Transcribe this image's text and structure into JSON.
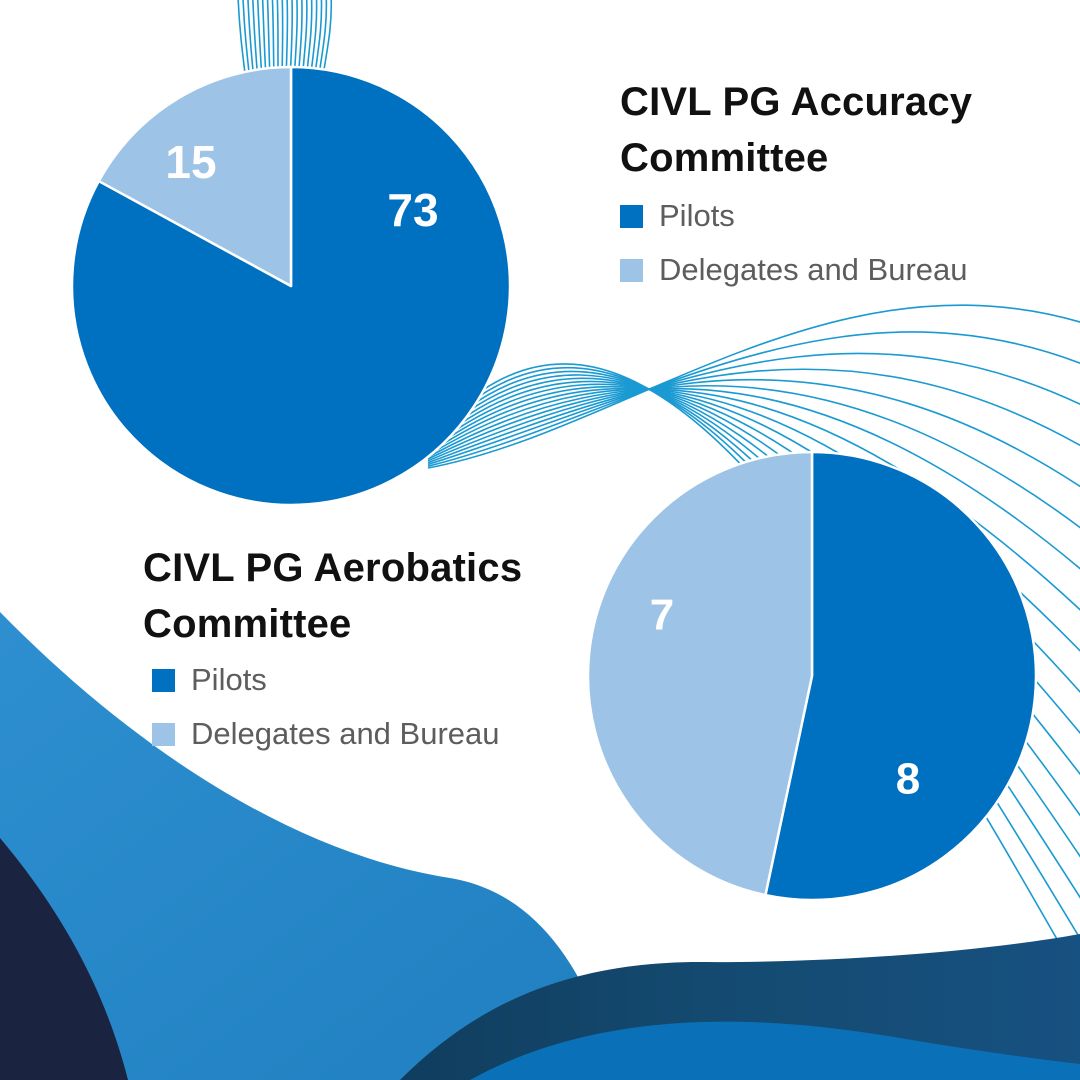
{
  "page": {
    "background": "#ffffff"
  },
  "palette": {
    "pie_dark_blue": "#0070c0",
    "pie_light_blue": "#9dc3e6",
    "thin_line_accent": "#1b9ad2",
    "wave_bright_blue": "#2487c8",
    "wave_shadow_dark": "#16304e",
    "wave_teal_navy": "#144a70",
    "wave_bottom_blue": "#0a70b7",
    "wave_navy_corner": "#1a2440",
    "title_color": "#111111",
    "legend_text_color": "#5d5d5d",
    "data_label_color": "#ffffff"
  },
  "chart_data": [
    {
      "type": "pie",
      "title": "CIVL PG Accuracy Committee",
      "labels": [
        "Pilots",
        "Delegates and Bureau"
      ],
      "values": [
        73,
        15
      ],
      "colors": [
        "#0070c0",
        "#9dc3e6"
      ],
      "data_labels": [
        "73",
        "15"
      ],
      "start_angle_deg": 0,
      "direction": "clockwise",
      "legend_position": "right-of-chart"
    },
    {
      "type": "pie",
      "title": "CIVL PG Aerobatics Committee",
      "labels": [
        "Pilots",
        "Delegates and Bureau"
      ],
      "values": [
        8,
        7
      ],
      "colors": [
        "#0070c0",
        "#9dc3e6"
      ],
      "data_labels": [
        "8",
        "7"
      ],
      "start_angle_deg": 0,
      "direction": "clockwise",
      "legend_position": "left-of-chart"
    }
  ]
}
